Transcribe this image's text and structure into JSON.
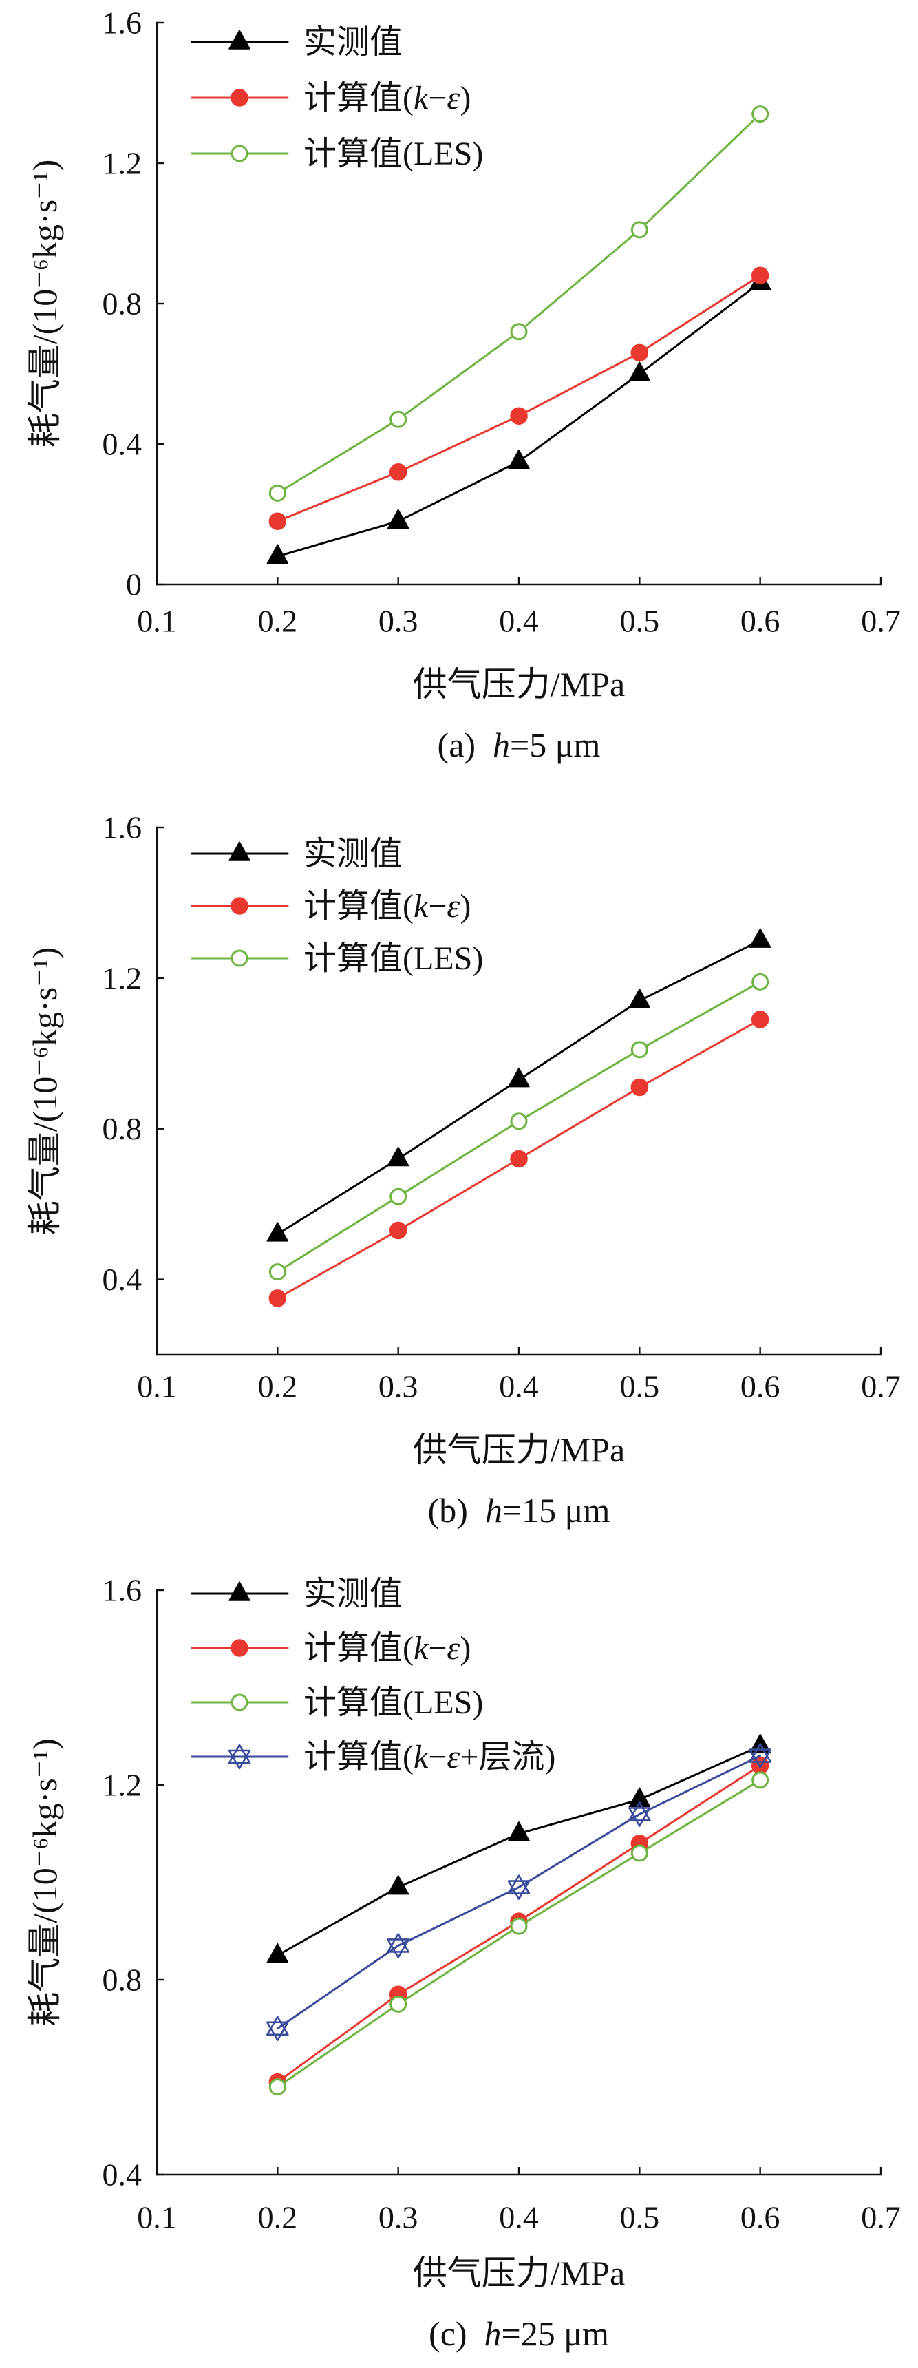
{
  "chart_data": [
    {
      "type": "line",
      "caption": "(a)  h=5 μm",
      "xlabel": "供气压力/MPa",
      "ylabel": "耗气量/(10⁻⁶kg·s⁻¹)",
      "xlim": [
        0.1,
        0.7
      ],
      "ylim": [
        0,
        1.6
      ],
      "xticks": [
        "0.1",
        "0.2",
        "0.3",
        "0.4",
        "0.5",
        "0.6",
        "0.7"
      ],
      "yticks": [
        "0",
        "0.4",
        "0.8",
        "1.2",
        "1.6"
      ],
      "grid": false,
      "legend": "top-left",
      "x": [
        0.2,
        0.3,
        0.4,
        0.5,
        0.6
      ],
      "series": [
        {
          "name": "实测值",
          "values": [
            0.08,
            0.18,
            0.35,
            0.6,
            0.86
          ],
          "color": "#000000",
          "marker": "triangle"
        },
        {
          "name": "计算值(k−ε)",
          "values": [
            0.18,
            0.32,
            0.48,
            0.66,
            0.88
          ],
          "color": "#e8382f",
          "marker": "filled-circle"
        },
        {
          "name": "计算值(LES)",
          "values": [
            0.26,
            0.47,
            0.72,
            1.01,
            1.34
          ],
          "color": "#6db33f",
          "marker": "open-circle"
        }
      ]
    },
    {
      "type": "line",
      "caption": "(b)  h=15 μm",
      "xlabel": "供气压力/MPa",
      "ylabel": "耗气量/(10⁻⁶kg·s⁻¹)",
      "xlim": [
        0.1,
        0.7
      ],
      "ylim": [
        0.2,
        1.6
      ],
      "xticks": [
        "0.1",
        "0.2",
        "0.3",
        "0.4",
        "0.5",
        "0.6",
        "0.7"
      ],
      "yticks": [
        "0.4",
        "0.8",
        "1.2",
        "1.6"
      ],
      "grid": false,
      "legend": "top-left",
      "x": [
        0.2,
        0.3,
        0.4,
        0.5,
        0.6
      ],
      "series": [
        {
          "name": "实测值",
          "values": [
            0.52,
            0.72,
            0.93,
            1.14,
            1.3
          ],
          "color": "#000000",
          "marker": "triangle"
        },
        {
          "name": "计算值(k−ε)",
          "values": [
            0.35,
            0.53,
            0.72,
            0.91,
            1.09
          ],
          "color": "#e8382f",
          "marker": "filled-circle"
        },
        {
          "name": "计算值(LES)",
          "values": [
            0.42,
            0.62,
            0.82,
            1.01,
            1.19
          ],
          "color": "#6db33f",
          "marker": "open-circle"
        }
      ]
    },
    {
      "type": "line",
      "caption": "(c)  h=25 μm",
      "xlabel": "供气压力/MPa",
      "ylabel": "耗气量/(10⁻⁶kg·s⁻¹)",
      "xlim": [
        0.1,
        0.7
      ],
      "ylim": [
        0.4,
        1.6
      ],
      "xticks": [
        "0.1",
        "0.2",
        "0.3",
        "0.4",
        "0.5",
        "0.6",
        "0.7"
      ],
      "yticks": [
        "0.4",
        "0.8",
        "1.2",
        "1.6"
      ],
      "grid": false,
      "legend": "top-left",
      "x": [
        0.2,
        0.3,
        0.4,
        0.5,
        0.6
      ],
      "series": [
        {
          "name": "实测值",
          "values": [
            0.85,
            0.99,
            1.1,
            1.17,
            1.28
          ],
          "color": "#000000",
          "marker": "triangle"
        },
        {
          "name": "计算值(k−ε)",
          "values": [
            0.59,
            0.77,
            0.92,
            1.08,
            1.24
          ],
          "color": "#e8382f",
          "marker": "filled-circle"
        },
        {
          "name": "计算值(LES)",
          "values": [
            0.58,
            0.75,
            0.91,
            1.06,
            1.21
          ],
          "color": "#6db33f",
          "marker": "open-circle"
        },
        {
          "name": "计算值(k−ε+层流)",
          "values": [
            0.7,
            0.87,
            0.99,
            1.14,
            1.26
          ],
          "color": "#3a4a9b",
          "marker": "hexagram"
        }
      ]
    }
  ]
}
